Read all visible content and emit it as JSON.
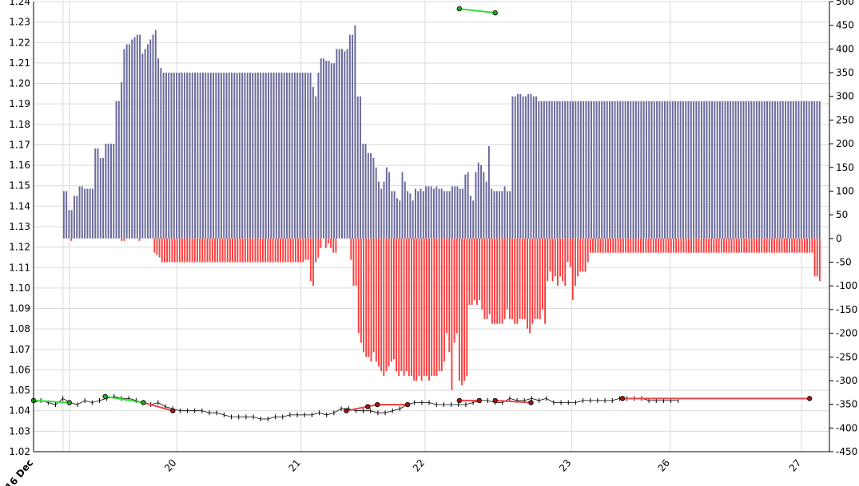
{
  "chart_data": {
    "type": "bar",
    "grid": true,
    "colors": {
      "positive_bars": "#6a6a9c",
      "negative_bars": "#ff3b3b",
      "price": "#000000",
      "up_trend": "#33dd33",
      "down_trend": "#ee4444",
      "marker_green": "#22aa22",
      "marker_red": "#aa1111",
      "grid": "#d9d9d9",
      "frame": "#000000"
    },
    "left_axis": {
      "ylim": [
        1.02,
        1.24
      ],
      "ticks": [
        "1.02",
        "1.03",
        "1.04",
        "1.05",
        "1.06",
        "1.07",
        "1.08",
        "1.09",
        "1.10",
        "1.11",
        "1.12",
        "1.13",
        "1.14",
        "1.15",
        "1.16",
        "1.17",
        "1.18",
        "1.19",
        "1.20",
        "1.21",
        "1.22",
        "1.23",
        "1.24"
      ]
    },
    "right_axis": {
      "ylim": [
        -450,
        500
      ],
      "ticks": [
        "-450",
        "-400",
        "-350",
        "-300",
        "-250",
        "-200",
        "-150",
        "-100",
        "-50",
        "0",
        "50",
        "100",
        "150",
        "200",
        "250",
        "300",
        "350",
        "400",
        "450",
        "500"
      ]
    },
    "x_axis": {
      "ticks": [
        {
          "label": "16 Dec",
          "pos": 0,
          "bold": true
        },
        {
          "label": "20",
          "pos": 0.18
        },
        {
          "label": "21",
          "pos": 0.336
        },
        {
          "label": "22",
          "pos": 0.492
        },
        {
          "label": "23",
          "pos": 0.676
        },
        {
          "label": "26",
          "pos": 0.8
        },
        {
          "label": "27",
          "pos": 0.965
        }
      ]
    },
    "series": [
      {
        "kind": "positive_bars",
        "x_range": [
          0.037,
          0.99
        ],
        "values": [
          100,
          100,
          60,
          60,
          90,
          90,
          110,
          110,
          105,
          105,
          105,
          105,
          190,
          190,
          170,
          170,
          200,
          200,
          200,
          200,
          290,
          290,
          330,
          400,
          410,
          410,
          420,
          425,
          430,
          430,
          390,
          400,
          410,
          420,
          430,
          440,
          380,
          360,
          350,
          350,
          350,
          350,
          350,
          350,
          350,
          350,
          350,
          350,
          350,
          350,
          350,
          350,
          350,
          350,
          350,
          350,
          350,
          350,
          350,
          350,
          350,
          350,
          350,
          350,
          350,
          350,
          350,
          350,
          350,
          350,
          350,
          350,
          350,
          350,
          350,
          350,
          350,
          350,
          350,
          350,
          350,
          350,
          350,
          350,
          350,
          350,
          350,
          350,
          350,
          350,
          350,
          350,
          350,
          350,
          350,
          320,
          300,
          350,
          380,
          380,
          375,
          375,
          370,
          370,
          400,
          400,
          400,
          395,
          400,
          430,
          430,
          450,
          300,
          300,
          200,
          200,
          180,
          180,
          170,
          150,
          120,
          105,
          120,
          150,
          140,
          100,
          100,
          85,
          80,
          140,
          120,
          100,
          95,
          80,
          105,
          100,
          105,
          100,
          110,
          110,
          110,
          105,
          110,
          105,
          105,
          100,
          100,
          100,
          110,
          110,
          110,
          105,
          105,
          135,
          140,
          90,
          80,
          140,
          160,
          155,
          140,
          120,
          195,
          105,
          100,
          100,
          100,
          100,
          110,
          100,
          100,
          300,
          300,
          305,
          305,
          300,
          300,
          305,
          305,
          300,
          300,
          290,
          290,
          290,
          290,
          290,
          290,
          290,
          290,
          290,
          290,
          290,
          290,
          290,
          290,
          290,
          290,
          290,
          290,
          290,
          290,
          290,
          290,
          290,
          290,
          290,
          290,
          290,
          290,
          290,
          290,
          290,
          290,
          290,
          290,
          290,
          290,
          290,
          290,
          290,
          290,
          290,
          290,
          290,
          290,
          290,
          290,
          290,
          290,
          290,
          290,
          290,
          290,
          290,
          290,
          290,
          290,
          290,
          290,
          290,
          290,
          290,
          290,
          290,
          290,
          290,
          290,
          290,
          290,
          290,
          290,
          290,
          290,
          290,
          290,
          290,
          290,
          290,
          290,
          290,
          290,
          290,
          290,
          290,
          290,
          290,
          290,
          290,
          290,
          290,
          290,
          290,
          290,
          290,
          290,
          290,
          290,
          290,
          290,
          290,
          290,
          290,
          290,
          290,
          290,
          290,
          290,
          290,
          290
        ]
      },
      {
        "kind": "negative_bars",
        "x_range": [
          0.037,
          0.99
        ],
        "values": [
          0,
          0,
          0,
          -5,
          0,
          0,
          0,
          0,
          0,
          0,
          0,
          0,
          0,
          0,
          0,
          0,
          0,
          0,
          0,
          0,
          0,
          0,
          0,
          -5,
          -5,
          0,
          0,
          0,
          0,
          0,
          -5,
          0,
          0,
          0,
          0,
          0,
          -30,
          -35,
          -40,
          -50,
          -50,
          -50,
          -50,
          -50,
          -50,
          -50,
          -50,
          -50,
          -50,
          -50,
          -50,
          -50,
          -50,
          -50,
          -50,
          -50,
          -50,
          -50,
          -50,
          -50,
          -50,
          -50,
          -50,
          -50,
          -50,
          -50,
          -50,
          -50,
          -50,
          -50,
          -50,
          -50,
          -50,
          -50,
          -50,
          -50,
          -50,
          -50,
          -50,
          -50,
          -50,
          -50,
          -50,
          -50,
          -50,
          -50,
          -50,
          -50,
          -50,
          -50,
          -50,
          -50,
          -50,
          -50,
          -50,
          -50,
          -45,
          -45,
          -90,
          -100,
          -50,
          -40,
          -20,
          0,
          -20,
          -10,
          -20,
          -30,
          -30,
          0,
          0,
          0,
          0,
          0,
          -45,
          -100,
          -100,
          -200,
          -220,
          -240,
          -250,
          -250,
          -260,
          -240,
          -260,
          -270,
          -280,
          -290,
          -280,
          -270,
          -260,
          -255,
          -280,
          -290,
          -280,
          -290,
          -280,
          -290,
          -290,
          -300,
          -300,
          -290,
          -300,
          -290,
          -290,
          -300,
          -290,
          -290,
          -290,
          -280,
          -280,
          -260,
          -200,
          -240,
          -320,
          -220,
          -200,
          -300,
          -310,
          -300,
          -290,
          -140,
          -140,
          -130,
          -140,
          -130,
          -150,
          -170,
          -170,
          -160,
          -180,
          -180,
          -180,
          -180,
          -180,
          -170,
          -150,
          -170,
          -170,
          -180,
          -180,
          -170,
          -170,
          -170,
          -190,
          -200,
          -180,
          -170,
          -170,
          -170,
          -150,
          -180,
          -90,
          -70,
          -90,
          -80,
          -100,
          -80,
          -90,
          -100,
          -50,
          -60,
          -130,
          -100,
          -80,
          -70,
          -70,
          -70,
          -50,
          -30,
          -30,
          -30,
          -30,
          -30,
          -30,
          -30,
          -30,
          -30,
          -30,
          -30,
          -30,
          -30,
          -30,
          -30,
          -30,
          -30,
          -30,
          -30,
          -30,
          -30,
          -30,
          -30,
          -30,
          -30,
          -30,
          -30,
          -30,
          -30,
          -30,
          -30,
          -30,
          -30,
          -30,
          -30,
          -30,
          -30,
          -30,
          -30,
          -30,
          -30,
          -30,
          -30,
          -30,
          -30,
          -30,
          -30,
          -30,
          -30,
          -30,
          -30,
          -30,
          -30,
          -30,
          -30,
          -30,
          -30,
          -30,
          -30,
          -30,
          -30,
          -30,
          -30,
          -30,
          -30,
          -30,
          -30,
          -30,
          -30,
          -30,
          -30,
          -30,
          -30,
          -30,
          -30,
          -30,
          -30,
          -30,
          -30,
          -30,
          -30,
          -30,
          -30,
          -30,
          -30,
          -30,
          -30,
          -30,
          -30,
          -80,
          -80,
          -90
        ]
      },
      {
        "kind": "price",
        "x_range": [
          0.0,
          0.81
        ],
        "values": [
          1.044,
          1.045,
          1.044,
          1.043,
          1.046,
          1.044,
          1.043,
          1.045,
          1.044,
          1.045,
          1.046,
          1.047,
          1.046,
          1.046,
          1.045,
          1.044,
          1.043,
          1.044,
          1.042,
          1.041,
          1.04,
          1.04,
          1.04,
          1.04,
          1.039,
          1.039,
          1.038,
          1.037,
          1.037,
          1.037,
          1.037,
          1.036,
          1.036,
          1.037,
          1.037,
          1.038,
          1.038,
          1.038,
          1.038,
          1.039,
          1.038,
          1.039,
          1.041,
          1.041,
          1.04,
          1.04,
          1.04,
          1.039,
          1.039,
          1.04,
          1.041,
          1.043,
          1.044,
          1.044,
          1.044,
          1.043,
          1.043,
          1.043,
          1.043,
          1.043,
          1.044,
          1.045,
          1.045,
          1.044,
          1.044,
          1.046,
          1.045,
          1.045,
          1.046,
          1.045,
          1.046,
          1.044,
          1.044,
          1.044,
          1.044,
          1.045,
          1.045,
          1.045,
          1.045,
          1.045,
          1.046,
          1.046,
          1.046,
          1.046,
          1.045,
          1.045,
          1.045,
          1.045,
          1.045
        ]
      }
    ],
    "trend_segments": [
      {
        "color": "up",
        "x": [
          0.0,
          0.045
        ],
        "y": [
          1.045,
          1.044
        ]
      },
      {
        "color": "up",
        "x": [
          0.09,
          0.138
        ],
        "y": [
          1.047,
          1.044
        ]
      },
      {
        "color": "down",
        "x": [
          0.138,
          0.175
        ],
        "y": [
          1.044,
          1.04
        ]
      },
      {
        "color": "down",
        "x": [
          0.393,
          0.432
        ],
        "y": [
          1.04,
          1.043
        ]
      },
      {
        "color": "down",
        "x": [
          0.432,
          0.47
        ],
        "y": [
          1.043,
          1.043
        ]
      },
      {
        "color": "down",
        "x": [
          0.535,
          0.56
        ],
        "y": [
          1.045,
          1.045
        ]
      },
      {
        "color": "down",
        "x": [
          0.58,
          0.625
        ],
        "y": [
          1.045,
          1.044
        ]
      },
      {
        "color": "down",
        "x": [
          0.74,
          0.975
        ],
        "y": [
          1.046,
          1.046
        ]
      },
      {
        "color": "up",
        "x": [
          0.535,
          0.58
        ],
        "y": [
          1.2365,
          1.2345
        ]
      }
    ],
    "markers": [
      {
        "color": "green",
        "x": 0.0,
        "y": 1.045
      },
      {
        "color": "green",
        "x": 0.045,
        "y": 1.044
      },
      {
        "color": "green",
        "x": 0.09,
        "y": 1.047
      },
      {
        "color": "green",
        "x": 0.138,
        "y": 1.044
      },
      {
        "color": "red",
        "x": 0.175,
        "y": 1.04
      },
      {
        "color": "red",
        "x": 0.393,
        "y": 1.04
      },
      {
        "color": "red",
        "x": 0.42,
        "y": 1.042
      },
      {
        "color": "red",
        "x": 0.432,
        "y": 1.043
      },
      {
        "color": "red",
        "x": 0.47,
        "y": 1.043
      },
      {
        "color": "red",
        "x": 0.535,
        "y": 1.045
      },
      {
        "color": "red",
        "x": 0.56,
        "y": 1.045
      },
      {
        "color": "red",
        "x": 0.58,
        "y": 1.045
      },
      {
        "color": "red",
        "x": 0.625,
        "y": 1.044
      },
      {
        "color": "red",
        "x": 0.74,
        "y": 1.046
      },
      {
        "color": "red",
        "x": 0.975,
        "y": 1.046
      },
      {
        "color": "green",
        "x": 0.535,
        "y": 1.2365
      },
      {
        "color": "green",
        "x": 0.58,
        "y": 1.2345
      }
    ]
  }
}
